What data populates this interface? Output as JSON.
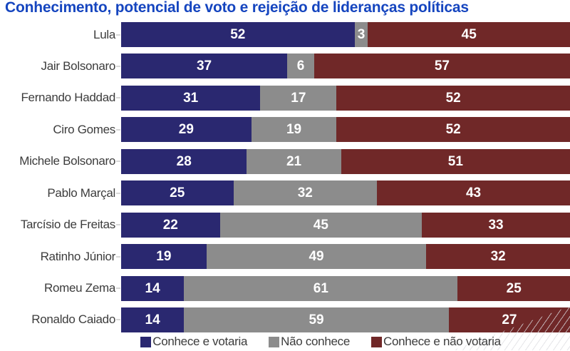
{
  "page": {
    "title": "Conhecimento, potencial de voto e rejeição de lideranças políticas"
  },
  "colors": {
    "title_text": "#1545bf",
    "row_label_text": "#3c3c3c",
    "value_text": "#ffffff",
    "series_votaria": "#2a2870",
    "series_nao_conhece": "#8c8c8c",
    "series_nao_votaria": "#702828"
  },
  "chart_data": {
    "type": "bar",
    "orientation": "horizontal",
    "stacked": true,
    "title": "Conhecimento, potencial de voto e rejeição de lideranças políticas",
    "xlabel": "",
    "ylabel": "",
    "xlim": [
      0,
      100
    ],
    "grid": false,
    "legend_position": "bottom",
    "value_labels": "inside-center",
    "categories": [
      "Lula",
      "Jair Bolsonaro",
      "Fernando Haddad",
      "Ciro Gomes",
      "Michele Bolsonaro",
      "Pablo Marçal",
      "Tarcísio de Freitas",
      "Ratinho Júnior",
      "Romeu Zema",
      "Ronaldo Caiado"
    ],
    "series": [
      {
        "name": "Conhece e votaria",
        "color": "#2a2870",
        "values": [
          52,
          37,
          31,
          29,
          28,
          25,
          22,
          19,
          14,
          14
        ]
      },
      {
        "name": "Não conhece",
        "color": "#8c8c8c",
        "values": [
          3,
          6,
          17,
          19,
          21,
          32,
          45,
          49,
          61,
          59
        ]
      },
      {
        "name": "Conhece e não votaria",
        "color": "#702828",
        "values": [
          45,
          57,
          52,
          52,
          51,
          43,
          33,
          32,
          25,
          27
        ]
      }
    ]
  }
}
